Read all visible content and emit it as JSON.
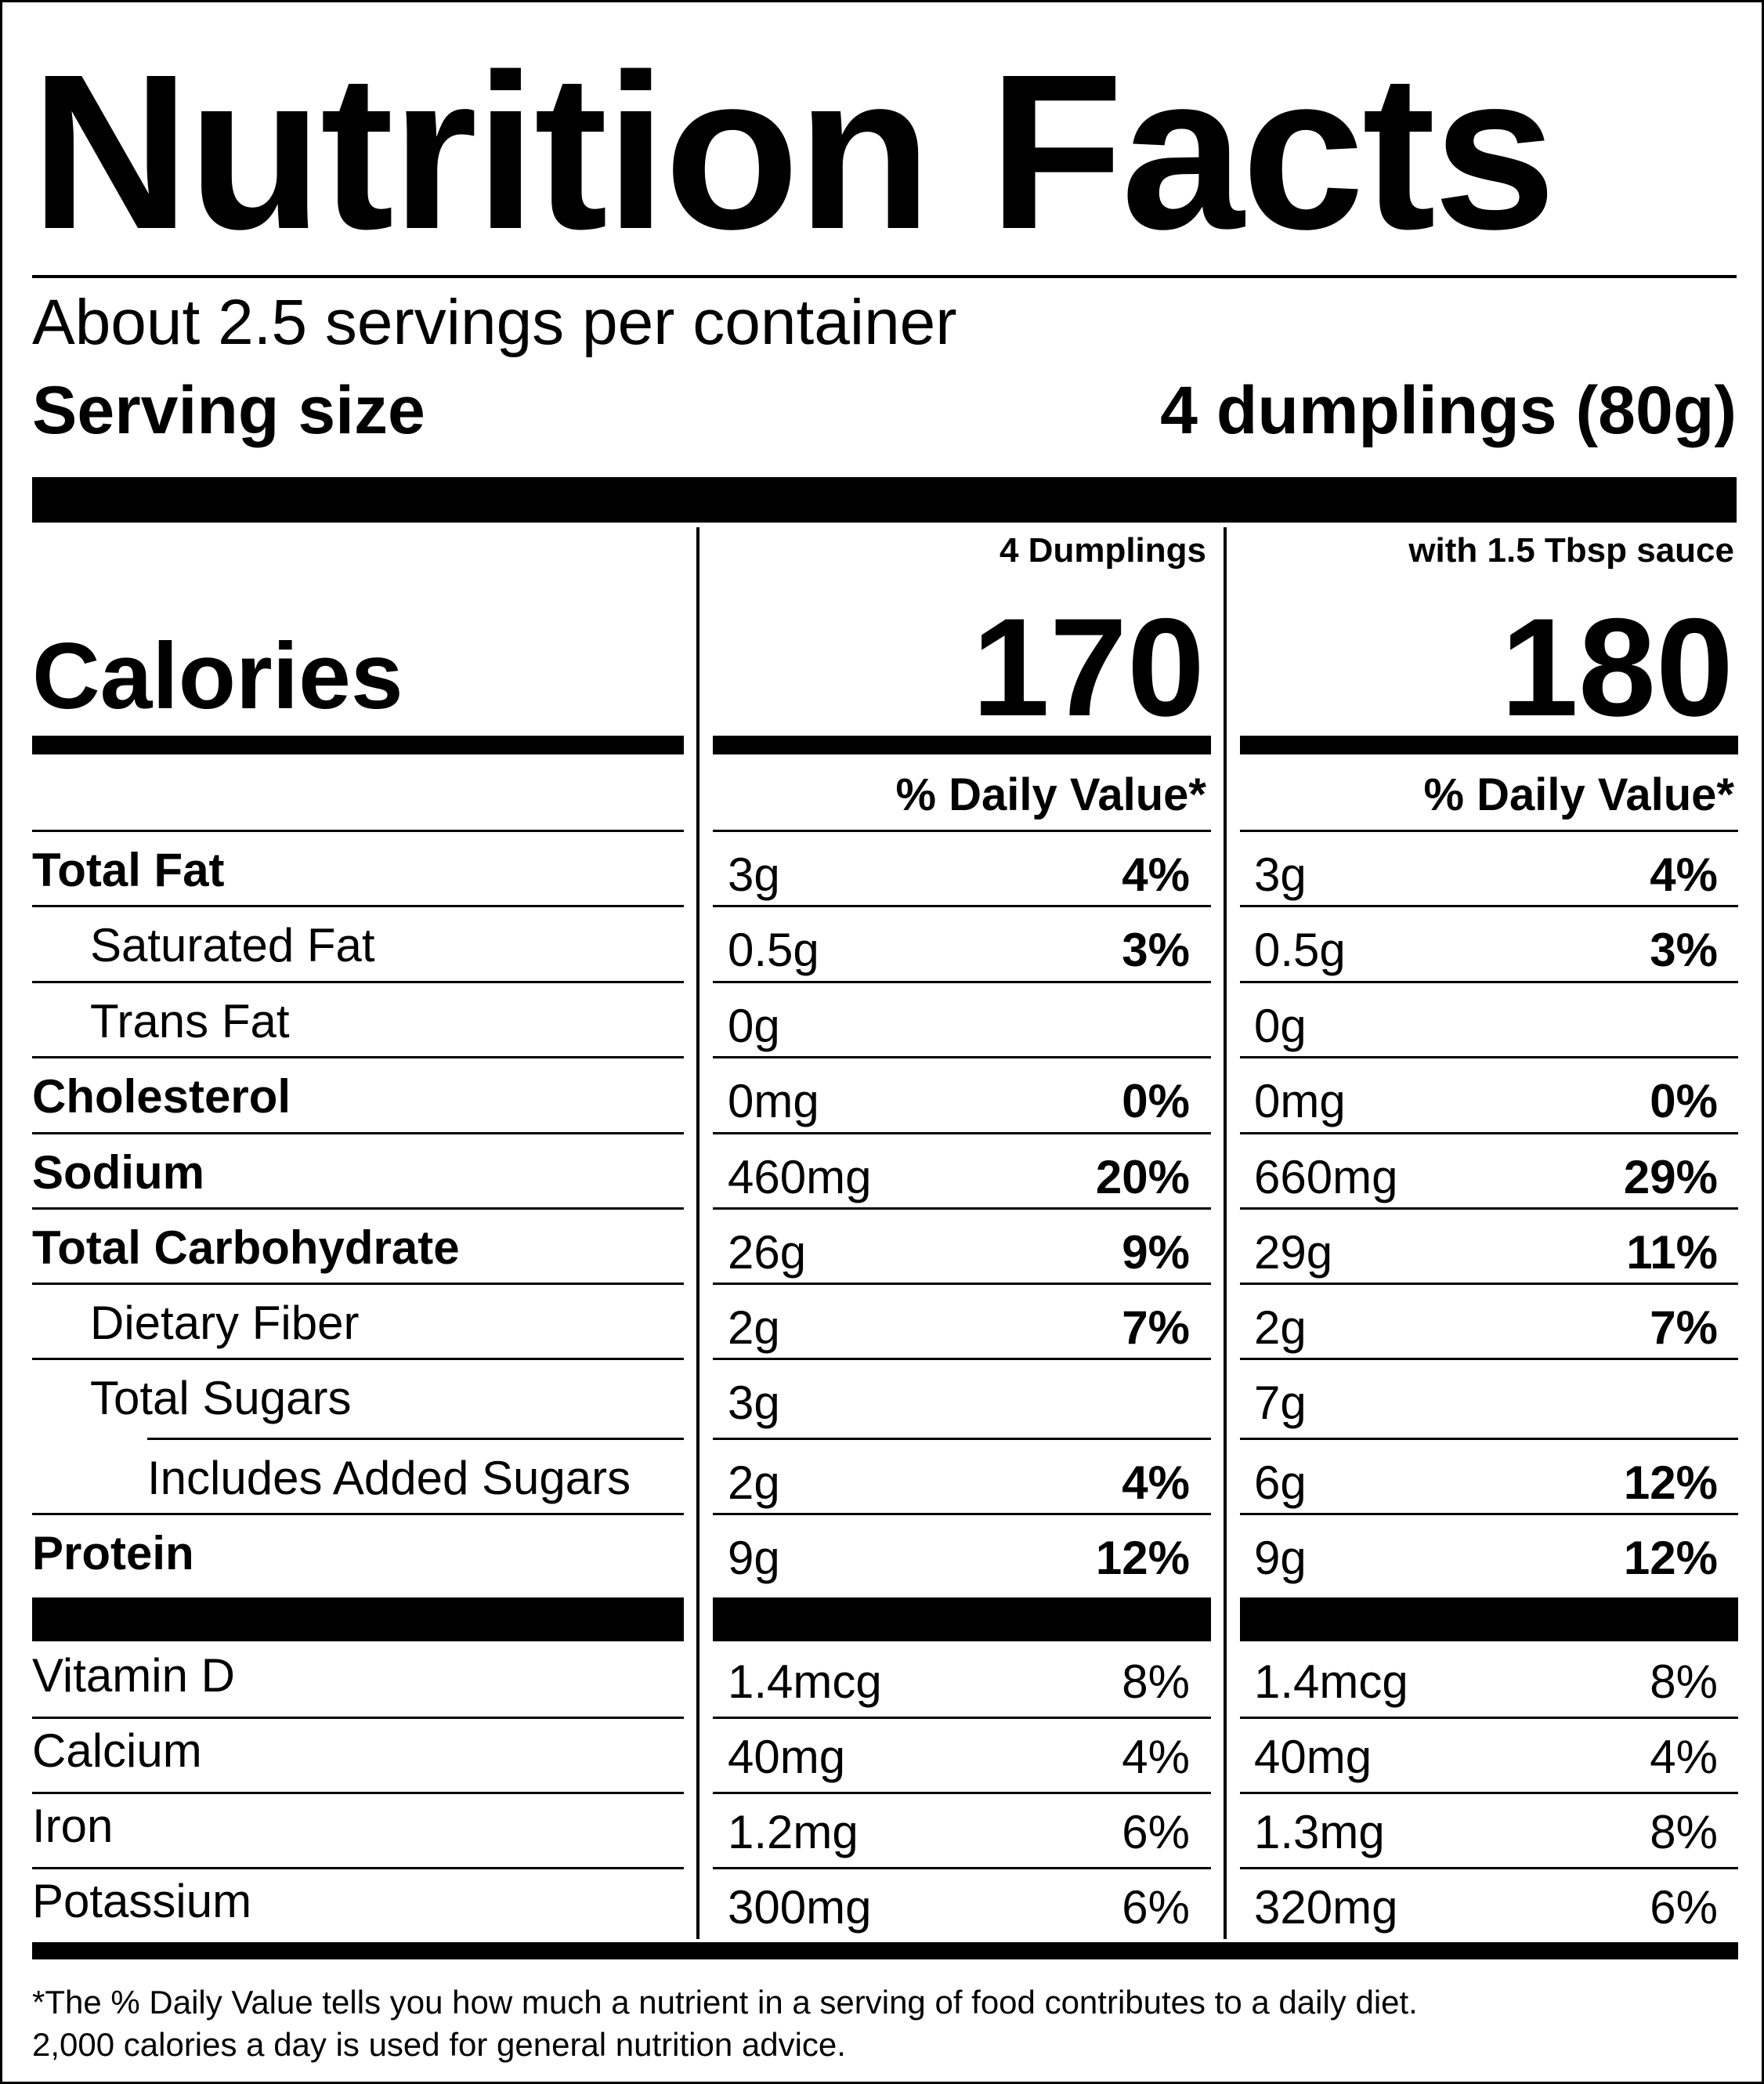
{
  "title": "Nutrition Facts",
  "servings_per_container": "About 2.5 servings per container",
  "serving_size_label": "Serving size",
  "serving_size_value": "4 dumplings (80g)",
  "calories_label": "Calories",
  "columns": [
    {
      "header": "4 Dumplings",
      "calories": "170",
      "dv_header": "% Daily Value*"
    },
    {
      "header": "with 1.5 Tbsp sauce",
      "calories": "180",
      "dv_header": "% Daily Value*"
    }
  ],
  "nutrients": [
    {
      "name": "Total Fat",
      "bold": true,
      "indent": 0,
      "values": [
        {
          "amount": "3g",
          "dv": "4%"
        },
        {
          "amount": "3g",
          "dv": "4%"
        }
      ]
    },
    {
      "name": "Saturated Fat",
      "bold": false,
      "indent": 1,
      "values": [
        {
          "amount": "0.5g",
          "dv": "3%"
        },
        {
          "amount": "0.5g",
          "dv": "3%"
        }
      ]
    },
    {
      "name": "Trans Fat",
      "bold": false,
      "indent": 1,
      "values": [
        {
          "amount": "0g",
          "dv": ""
        },
        {
          "amount": "0g",
          "dv": ""
        }
      ]
    },
    {
      "name": "Cholesterol",
      "bold": true,
      "indent": 0,
      "values": [
        {
          "amount": "0mg",
          "dv": "0%"
        },
        {
          "amount": "0mg",
          "dv": "0%"
        }
      ]
    },
    {
      "name": "Sodium",
      "bold": true,
      "indent": 0,
      "values": [
        {
          "amount": "460mg",
          "dv": "20%"
        },
        {
          "amount": "660mg",
          "dv": "29%"
        }
      ]
    },
    {
      "name": "Total Carbohydrate",
      "bold": true,
      "indent": 0,
      "values": [
        {
          "amount": "26g",
          "dv": "9%"
        },
        {
          "amount": "29g",
          "dv": "11%"
        }
      ]
    },
    {
      "name": "Dietary Fiber",
      "bold": false,
      "indent": 1,
      "values": [
        {
          "amount": "2g",
          "dv": "7%"
        },
        {
          "amount": "2g",
          "dv": "7%"
        }
      ]
    },
    {
      "name": "Total Sugars",
      "bold": false,
      "indent": 1,
      "values": [
        {
          "amount": "3g",
          "dv": ""
        },
        {
          "amount": "7g",
          "dv": ""
        }
      ]
    },
    {
      "name": "Includes Added Sugars",
      "bold": false,
      "indent": 2,
      "values": [
        {
          "amount": "2g",
          "dv": "4%"
        },
        {
          "amount": "6g",
          "dv": "12%"
        }
      ]
    },
    {
      "name": "Protein",
      "bold": true,
      "indent": 0,
      "values": [
        {
          "amount": "9g",
          "dv": "12%"
        },
        {
          "amount": "9g",
          "dv": "12%"
        }
      ]
    }
  ],
  "vitamins": [
    {
      "name": "Vitamin D",
      "values": [
        {
          "amount": "1.4mcg",
          "dv": "8%"
        },
        {
          "amount": "1.4mcg",
          "dv": "8%"
        }
      ]
    },
    {
      "name": "Calcium",
      "values": [
        {
          "amount": "40mg",
          "dv": "4%"
        },
        {
          "amount": "40mg",
          "dv": "4%"
        }
      ]
    },
    {
      "name": "Iron",
      "values": [
        {
          "amount": "1.2mg",
          "dv": "6%"
        },
        {
          "amount": "1.3mg",
          "dv": "8%"
        }
      ]
    },
    {
      "name": "Potassium",
      "values": [
        {
          "amount": "300mg",
          "dv": "6%"
        },
        {
          "amount": "320mg",
          "dv": "6%"
        }
      ]
    }
  ],
  "footnote": [
    "*The % Daily Value tells you how much a nutrient in a serving of food contributes to a daily diet.",
    "2,000 calories a day is used for general nutrition advice."
  ]
}
